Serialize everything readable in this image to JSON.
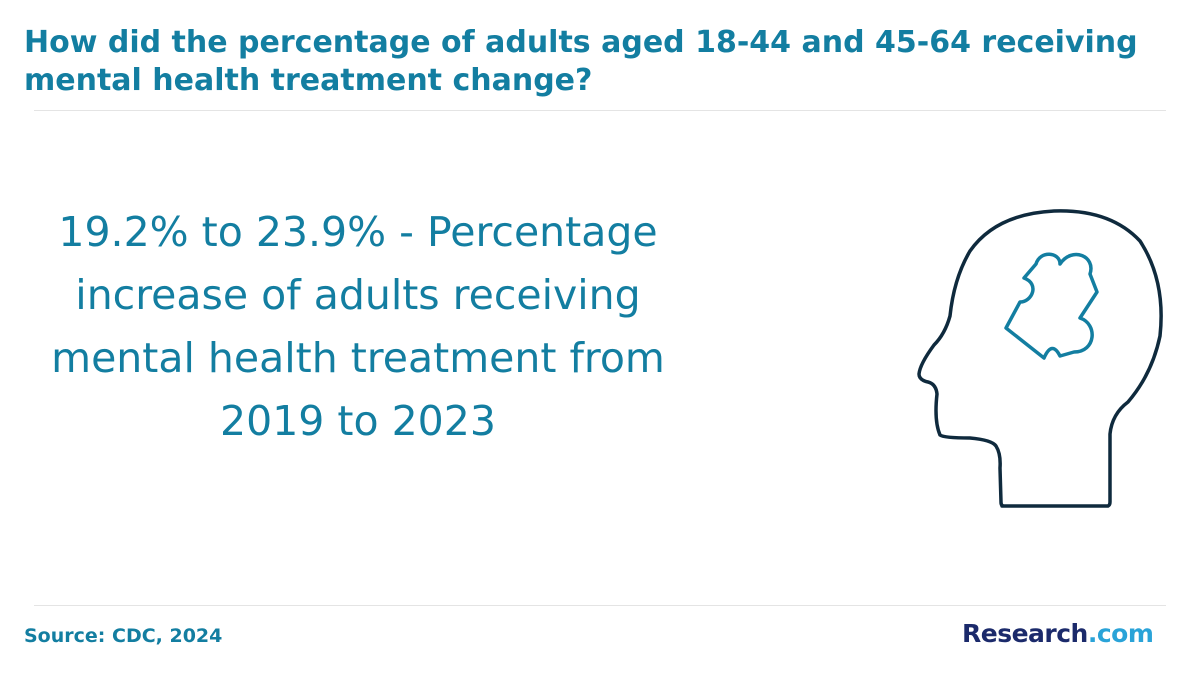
{
  "header": {
    "title": "How did the percentage of adults aged 18-44 and 45-64 receiving mental health treatment change?"
  },
  "stat": {
    "text": "19.2% to 23.9% - Percentage increase of adults receiving mental health treatment from 2019 to 2023"
  },
  "illustration": {
    "icon": "head-with-puzzle-piece-icon",
    "outline_color": "#0f2a3d",
    "puzzle_color": "#137ea1"
  },
  "footer": {
    "source": "Source: CDC, 2024",
    "logo_primary": "Research",
    "logo_suffix": ".com"
  },
  "colors": {
    "accent": "#137ea1",
    "logo_primary": "#1b2a6b",
    "logo_suffix": "#2aa3d8",
    "divider": "#e4e4e4"
  }
}
